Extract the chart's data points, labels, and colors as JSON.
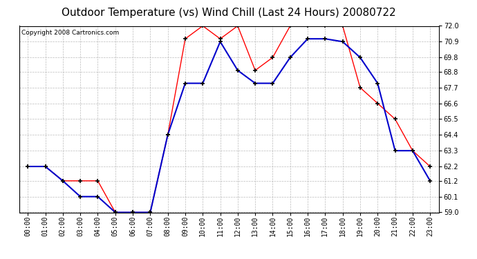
{
  "title": "Outdoor Temperature (vs) Wind Chill (Last 24 Hours) 20080722",
  "copyright": "Copyright 2008 Cartronics.com",
  "x_labels": [
    "00:00",
    "01:00",
    "02:00",
    "03:00",
    "04:00",
    "05:00",
    "06:00",
    "07:00",
    "08:00",
    "09:00",
    "10:00",
    "11:00",
    "12:00",
    "13:00",
    "14:00",
    "15:00",
    "16:00",
    "17:00",
    "18:00",
    "19:00",
    "20:00",
    "21:00",
    "22:00",
    "23:00"
  ],
  "temp_red": [
    62.2,
    62.2,
    61.2,
    61.2,
    61.2,
    59.0,
    59.0,
    59.0,
    64.4,
    71.1,
    72.0,
    71.1,
    72.0,
    68.9,
    69.8,
    72.0,
    72.0,
    72.0,
    72.0,
    67.7,
    66.6,
    65.5,
    63.3,
    62.2
  ],
  "wind_chill_blue": [
    62.2,
    62.2,
    61.2,
    60.1,
    60.1,
    59.0,
    59.0,
    59.0,
    64.4,
    68.0,
    68.0,
    70.9,
    68.9,
    68.0,
    68.0,
    69.8,
    71.1,
    71.1,
    70.9,
    69.8,
    68.0,
    63.3,
    63.3,
    61.2
  ],
  "ylim": [
    59.0,
    72.0
  ],
  "ytick_vals": [
    59.0,
    60.1,
    61.2,
    62.2,
    63.3,
    64.4,
    65.5,
    66.6,
    67.7,
    68.8,
    69.8,
    70.9,
    72.0
  ],
  "ytick_labels": [
    "59.0",
    "60.1",
    "61.2",
    "62.2",
    "63.3",
    "64.4",
    "65.5",
    "66.6",
    "67.7",
    "68.8",
    "69.8",
    "70.9",
    "72.0"
  ],
  "red_color": "#ff0000",
  "blue_color": "#0000cc",
  "bg_color": "#ffffff",
  "plot_bg": "#ffffff",
  "grid_color": "#aaaaaa",
  "title_fontsize": 11,
  "copyright_fontsize": 6.5,
  "tick_fontsize": 7,
  "marker_color": "#000000"
}
